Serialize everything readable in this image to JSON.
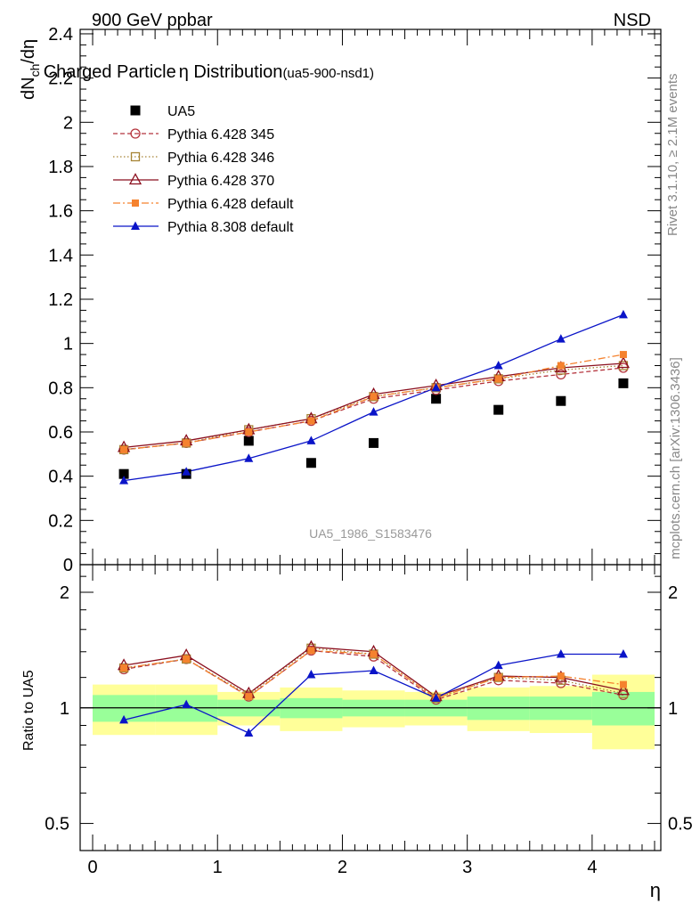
{
  "header": {
    "left": "900 GeV ppbar",
    "right": "NSD"
  },
  "chart_data": [
    {
      "type": "scatter",
      "panel": "main",
      "title": "Charged Particle",
      "title_symbol": "η",
      "title_rest": " Distribution",
      "title_suffix": "(ua5-900-nsd1)",
      "ylabel": {
        "main": "dN",
        "sub": "ch",
        "tail": "/dη"
      },
      "xlim": [
        -0.1,
        4.55
      ],
      "ylim": [
        0,
        2.42
      ],
      "yticks": [
        "0",
        "0.2",
        "0.4",
        "0.6",
        "0.8",
        "1",
        "1.2",
        "1.4",
        "1.6",
        "1.8",
        "2",
        "2.2",
        "2.4"
      ],
      "ytick_values": [
        0,
        0.2,
        0.4,
        0.6,
        0.8,
        1.0,
        1.2,
        1.4,
        1.6,
        1.8,
        2.0,
        2.2,
        2.4
      ],
      "x": [
        0.25,
        0.75,
        1.25,
        1.75,
        2.25,
        2.75,
        3.25,
        3.75,
        4.25
      ],
      "series": [
        {
          "name": "UA5",
          "color": "#000000",
          "marker": "square-filled",
          "line": "none",
          "values": [
            0.41,
            0.41,
            0.56,
            0.46,
            0.55,
            0.75,
            0.7,
            0.74,
            0.82
          ]
        },
        {
          "name": "Pythia 6.428 345",
          "color": "#b5353e",
          "marker": "circle-open",
          "line": "dashed",
          "values": [
            0.52,
            0.55,
            0.6,
            0.65,
            0.75,
            0.79,
            0.83,
            0.86,
            0.89
          ]
        },
        {
          "name": "Pythia 6.428 346",
          "color": "#a68435",
          "marker": "square-open",
          "line": "dotted",
          "values": [
            0.52,
            0.55,
            0.61,
            0.66,
            0.76,
            0.8,
            0.84,
            0.88,
            0.9
          ]
        },
        {
          "name": "Pythia 6.428 370",
          "color": "#8b0f1e",
          "marker": "triangle-open",
          "line": "solid",
          "values": [
            0.53,
            0.56,
            0.61,
            0.66,
            0.77,
            0.81,
            0.85,
            0.89,
            0.91
          ]
        },
        {
          "name": "Pythia 6.428 default",
          "color": "#f5822e",
          "marker": "square-filled-small",
          "line": "dashdot",
          "values": [
            0.52,
            0.55,
            0.6,
            0.65,
            0.76,
            0.8,
            0.84,
            0.9,
            0.95
          ]
        },
        {
          "name": "Pythia 8.308 default",
          "color": "#0a14c8",
          "marker": "triangle-filled",
          "line": "solid",
          "values": [
            0.38,
            0.42,
            0.48,
            0.56,
            0.69,
            0.8,
            0.9,
            1.02,
            1.13
          ]
        }
      ],
      "annotation": "UA5_1986_S1583476"
    },
    {
      "type": "scatter",
      "panel": "ratio",
      "ylabel": "Ratio to UA5",
      "xlabel": "η",
      "xlim": [
        -0.1,
        4.55
      ],
      "xticks": [
        "0",
        "1",
        "2",
        "3",
        "4"
      ],
      "xtick_values": [
        0,
        1,
        2,
        3,
        4
      ],
      "ylim": [
        0.425,
        2.36
      ],
      "yscale": "log",
      "yticks": [
        "0.5",
        "1",
        "2"
      ],
      "ytick_values": [
        0.5,
        1,
        2
      ],
      "reference_line": 1,
      "x": [
        0.25,
        0.75,
        1.25,
        1.75,
        2.25,
        2.75,
        3.25,
        3.75,
        4.25
      ],
      "bin_edges": [
        0,
        0.5,
        1,
        1.5,
        2,
        2.5,
        3,
        3.5,
        4,
        4.5
      ],
      "bands": {
        "inner": {
          "color": "#99ff99",
          "low": [
            0.92,
            0.92,
            0.95,
            0.94,
            0.95,
            0.95,
            0.93,
            0.93,
            0.9
          ],
          "high": [
            1.08,
            1.08,
            1.05,
            1.06,
            1.05,
            1.05,
            1.07,
            1.07,
            1.1
          ]
        },
        "outer": {
          "color": "#ffff99",
          "low": [
            0.85,
            0.85,
            0.9,
            0.87,
            0.89,
            0.9,
            0.87,
            0.86,
            0.78
          ],
          "high": [
            1.15,
            1.15,
            1.1,
            1.13,
            1.11,
            1.1,
            1.13,
            1.14,
            1.22
          ]
        }
      },
      "series": [
        {
          "name": "Pythia 6.428 345",
          "values": [
            1.26,
            1.34,
            1.07,
            1.41,
            1.36,
            1.05,
            1.18,
            1.16,
            1.08
          ]
        },
        {
          "name": "Pythia 6.428 346",
          "values": [
            1.27,
            1.34,
            1.08,
            1.43,
            1.38,
            1.06,
            1.2,
            1.18,
            1.09
          ]
        },
        {
          "name": "Pythia 6.428 370",
          "values": [
            1.29,
            1.37,
            1.09,
            1.44,
            1.4,
            1.07,
            1.21,
            1.2,
            1.11
          ]
        },
        {
          "name": "Pythia 6.428 default",
          "values": [
            1.27,
            1.34,
            1.07,
            1.41,
            1.38,
            1.06,
            1.2,
            1.21,
            1.15
          ]
        },
        {
          "name": "Pythia 8.308 default",
          "values": [
            0.93,
            1.02,
            0.86,
            1.22,
            1.25,
            1.06,
            1.29,
            1.38,
            1.38
          ]
        }
      ]
    }
  ],
  "side_text": {
    "rivet": "Rivet 3.1.10, ≥ 2.1M events",
    "mcplots": "mcplots.cern.ch [arXiv:1306.3436]"
  }
}
